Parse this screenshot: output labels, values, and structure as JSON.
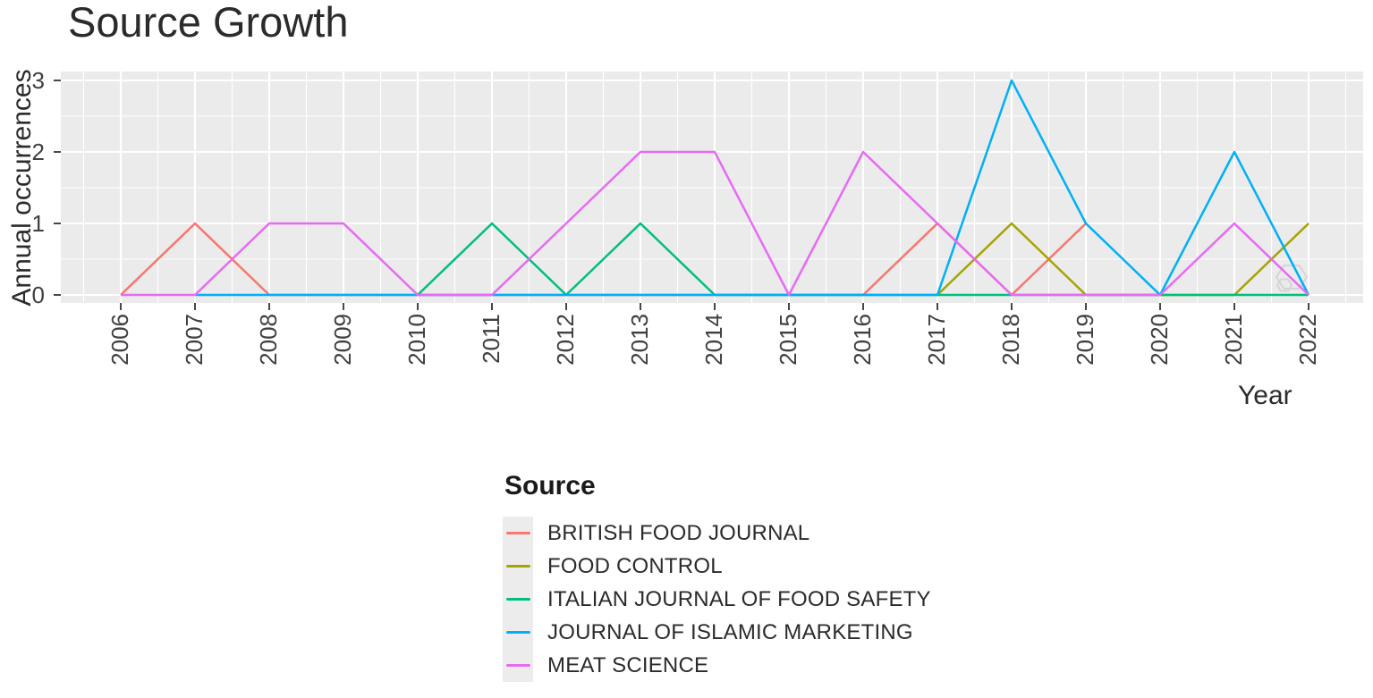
{
  "title": {
    "text": "Source Growth",
    "color": "#2b2b2b"
  },
  "axes": {
    "x_title": "Year",
    "y_title": "Annual occurrences",
    "x_tick_labels": [
      "2006",
      "2007",
      "2008",
      "2009",
      "2010",
      "2011",
      "2012",
      "2013",
      "2014",
      "2015",
      "2016",
      "2017",
      "2018",
      "2019",
      "2020",
      "2021",
      "2022"
    ],
    "y_tick_labels": [
      "0",
      "1",
      "2",
      "3"
    ],
    "tick_label_color": "#404040",
    "tick_mark_color": "#333333"
  },
  "legend": {
    "title": "Source",
    "key_background": "#ececec",
    "items": [
      {
        "label": "BRITISH FOOD JOURNAL",
        "color": "#F8766D"
      },
      {
        "label": "FOOD CONTROL",
        "color": "#A3A500"
      },
      {
        "label": "ITALIAN JOURNAL OF FOOD SAFETY",
        "color": "#00BF7D"
      },
      {
        "label": "JOURNAL OF ISLAMIC MARKETING",
        "color": "#00B0F6"
      },
      {
        "label": "MEAT SCIENCE",
        "color": "#E76BF3"
      }
    ]
  },
  "chart_data": {
    "type": "line",
    "title": "Source Growth",
    "xlabel": "Year",
    "ylabel": "Annual occurrences",
    "x_ticks": [
      2006,
      2007,
      2008,
      2009,
      2010,
      2011,
      2012,
      2013,
      2014,
      2015,
      2016,
      2017,
      2018,
      2019,
      2020,
      2021,
      2022
    ],
    "y_ticks": [
      0,
      1,
      2,
      3
    ],
    "xlim": [
      2006,
      2022
    ],
    "ylim": [
      0,
      3
    ],
    "grid": "major and minor white gridlines on gray panel",
    "legend_position": "bottom-left below plot",
    "style": {
      "panel_background": "#EBEBEB",
      "grid_color": "#FFFFFF",
      "line_width": 2.5,
      "watermark_color": "#d5d5d5"
    },
    "series": [
      {
        "name": "BRITISH FOOD JOURNAL",
        "color": "#F8766D",
        "x": [
          2006,
          2007,
          2008,
          2009,
          2010,
          2011,
          2012,
          2013,
          2014,
          2015,
          2016,
          2017,
          2018,
          2019
        ],
        "values": [
          0,
          1,
          0,
          0,
          0,
          0,
          0,
          0,
          0,
          0,
          0,
          1,
          0,
          1
        ]
      },
      {
        "name": "FOOD CONTROL",
        "color": "#A3A500",
        "x": [
          2017,
          2018,
          2019,
          2020,
          2021,
          2022
        ],
        "values": [
          0,
          1,
          0,
          0,
          0,
          1
        ]
      },
      {
        "name": "ITALIAN JOURNAL OF FOOD SAFETY",
        "color": "#00BF7D",
        "x": [
          2010,
          2011,
          2012,
          2013,
          2014,
          2015,
          2016,
          2017,
          2018,
          2019,
          2020,
          2021,
          2022
        ],
        "values": [
          0,
          1,
          0,
          1,
          0,
          0,
          0,
          0,
          0,
          0,
          0,
          0,
          0
        ]
      },
      {
        "name": "JOURNAL OF ISLAMIC MARKETING",
        "color": "#00B0F6",
        "x": [
          2007,
          2008,
          2009,
          2010,
          2011,
          2012,
          2013,
          2014,
          2015,
          2016,
          2017,
          2018,
          2019,
          2020,
          2021,
          2022
        ],
        "values": [
          0,
          0,
          0,
          0,
          0,
          0,
          0,
          0,
          0,
          0,
          0,
          3,
          1,
          0,
          2,
          0
        ]
      },
      {
        "name": "MEAT SCIENCE",
        "color": "#E76BF3",
        "x": [
          2006,
          2007,
          2008,
          2009,
          2010,
          2011,
          2012,
          2013,
          2014,
          2015,
          2016,
          2017,
          2018,
          2019,
          2020,
          2021,
          2022
        ],
        "values": [
          0,
          0,
          1,
          1,
          0,
          0,
          1,
          2,
          2,
          0,
          2,
          1,
          0,
          0,
          0,
          1,
          0
        ]
      }
    ]
  }
}
